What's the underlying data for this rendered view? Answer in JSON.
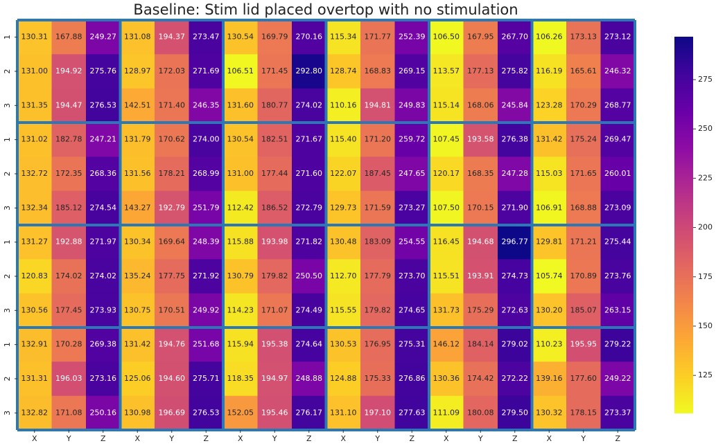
{
  "chart_data": {
    "type": "heatmap",
    "title": "Baseline: Stim lid placed overtop with no stimulation",
    "categories": [
      "X",
      "Y",
      "Z",
      "X",
      "Y",
      "Z",
      "X",
      "Y",
      "Z",
      "X",
      "Y",
      "Z",
      "X",
      "Y",
      "Z",
      "X",
      "Y",
      "Z"
    ],
    "y_categories": [
      "1",
      "2",
      "3",
      "1",
      "2",
      "3",
      "1",
      "2",
      "3",
      "1",
      "2",
      "3"
    ],
    "values": [
      [
        130.31,
        167.88,
        249.27,
        131.08,
        194.37,
        273.47,
        130.54,
        169.79,
        270.16,
        115.34,
        171.77,
        252.39,
        106.5,
        167.95,
        267.7,
        106.26,
        173.13,
        273.12
      ],
      [
        131.0,
        194.92,
        275.76,
        128.97,
        172.03,
        271.69,
        106.51,
        171.45,
        292.8,
        128.74,
        168.83,
        269.15,
        113.57,
        177.13,
        275.82,
        116.19,
        165.61,
        246.32
      ],
      [
        131.35,
        194.47,
        276.53,
        142.51,
        171.4,
        246.35,
        131.6,
        180.77,
        274.02,
        110.16,
        194.81,
        249.83,
        115.14,
        168.06,
        245.84,
        123.28,
        170.29,
        268.77
      ],
      [
        131.02,
        182.78,
        247.21,
        131.79,
        170.62,
        274.0,
        130.54,
        182.51,
        271.67,
        115.4,
        171.2,
        259.72,
        107.45,
        193.58,
        276.38,
        131.42,
        175.24,
        269.47
      ],
      [
        132.72,
        172.35,
        268.36,
        131.56,
        178.21,
        268.99,
        131.0,
        177.44,
        271.6,
        122.07,
        187.45,
        247.65,
        120.17,
        168.35,
        247.28,
        115.03,
        171.65,
        260.01
      ],
      [
        132.34,
        185.12,
        274.54,
        143.27,
        192.79,
        251.79,
        112.42,
        186.52,
        272.79,
        129.73,
        171.59,
        273.27,
        107.5,
        170.15,
        271.9,
        106.91,
        168.88,
        273.09
      ],
      [
        131.27,
        192.88,
        271.97,
        130.34,
        169.64,
        248.39,
        115.88,
        193.98,
        271.82,
        130.48,
        183.09,
        254.55,
        116.45,
        194.68,
        296.77,
        129.81,
        171.21,
        275.44
      ],
      [
        120.83,
        174.02,
        274.02,
        135.24,
        177.75,
        271.92,
        130.79,
        179.82,
        250.5,
        112.7,
        177.79,
        273.7,
        115.51,
        193.91,
        274.73,
        105.74,
        170.89,
        273.76
      ],
      [
        130.56,
        177.45,
        273.93,
        130.75,
        170.51,
        249.92,
        114.23,
        171.07,
        274.49,
        115.55,
        179.82,
        274.65,
        131.73,
        175.29,
        272.63,
        130.2,
        185.07,
        263.15
      ],
      [
        132.91,
        170.28,
        269.38,
        131.42,
        194.76,
        251.68,
        115.94,
        195.38,
        274.64,
        130.53,
        176.95,
        275.31,
        146.12,
        184.14,
        279.02,
        110.23,
        195.95,
        279.22
      ],
      [
        131.31,
        196.03,
        273.16,
        125.06,
        194.6,
        275.71,
        118.35,
        194.97,
        248.88,
        124.88,
        175.33,
        276.86,
        130.36,
        174.42,
        272.22,
        139.16,
        177.6,
        249.22
      ],
      [
        132.82,
        171.08,
        250.16,
        130.98,
        196.69,
        276.53,
        152.05,
        195.46,
        276.17,
        131.1,
        197.1,
        277.63,
        111.09,
        180.08,
        279.5,
        130.32,
        178.15,
        273.37
      ]
    ],
    "value_labels": [
      [
        "130.31",
        "167.88",
        "249.27",
        "131.08",
        "194.37",
        "273.47",
        "130.54",
        "169.79",
        "270.16",
        "115.34",
        "171.77",
        "252.39",
        "106.50",
        "167.95",
        "267.70",
        "106.26",
        "173.13",
        "273.12"
      ],
      [
        "131.00",
        "194.92",
        "275.76",
        "128.97",
        "172.03",
        "271.69",
        "106.51",
        "171.45",
        "292.80",
        "128.74",
        "168.83",
        "269.15",
        "113.57",
        "177.13",
        "275.82",
        "116.19",
        "165.61",
        "246.32"
      ],
      [
        "131.35",
        "194.47",
        "276.53",
        "142.51",
        "171.40",
        "246.35",
        "131.60",
        "180.77",
        "274.02",
        "110.16",
        "194.81",
        "249.83",
        "115.14",
        "168.06",
        "245.84",
        "123.28",
        "170.29",
        "268.77"
      ],
      [
        "131.02",
        "182.78",
        "247.21",
        "131.79",
        "170.62",
        "274.00",
        "130.54",
        "182.51",
        "271.67",
        "115.40",
        "171.20",
        "259.72",
        "107.45",
        "193.58",
        "276.38",
        "131.42",
        "175.24",
        "269.47"
      ],
      [
        "132.72",
        "172.35",
        "268.36",
        "131.56",
        "178.21",
        "268.99",
        "131.00",
        "177.44",
        "271.60",
        "122.07",
        "187.45",
        "247.65",
        "120.17",
        "168.35",
        "247.28",
        "115.03",
        "171.65",
        "260.01"
      ],
      [
        "132.34",
        "185.12",
        "274.54",
        "143.27",
        "192.79",
        "251.79",
        "112.42",
        "186.52",
        "272.79",
        "129.73",
        "171.59",
        "273.27",
        "107.50",
        "170.15",
        "271.90",
        "106.91",
        "168.88",
        "273.09"
      ],
      [
        "131.27",
        "192.88",
        "271.97",
        "130.34",
        "169.64",
        "248.39",
        "115.88",
        "193.98",
        "271.82",
        "130.48",
        "183.09",
        "254.55",
        "116.45",
        "194.68",
        "296.77",
        "129.81",
        "171.21",
        "275.44"
      ],
      [
        "120.83",
        "174.02",
        "274.02",
        "135.24",
        "177.75",
        "271.92",
        "130.79",
        "179.82",
        "250.50",
        "112.70",
        "177.79",
        "273.70",
        "115.51",
        "193.91",
        "274.73",
        "105.74",
        "170.89",
        "273.76"
      ],
      [
        "130.56",
        "177.45",
        "273.93",
        "130.75",
        "170.51",
        "249.92",
        "114.23",
        "171.07",
        "274.49",
        "115.55",
        "179.82",
        "274.65",
        "131.73",
        "175.29",
        "272.63",
        "130.20",
        "185.07",
        "263.15"
      ],
      [
        "132.91",
        "170.28",
        "269.38",
        "131.42",
        "194.76",
        "251.68",
        "115.94",
        "195.38",
        "274.64",
        "130.53",
        "176.95",
        "275.31",
        "146.12",
        "184.14",
        "279.02",
        "110.23",
        "195.95",
        "279.22"
      ],
      [
        "131.31",
        "196.03",
        "273.16",
        "125.06",
        "194.60",
        "275.71",
        "118.35",
        "194.97",
        "248.88",
        "124.88",
        "175.33",
        "276.86",
        "130.36",
        "174.42",
        "272.22",
        "139.16",
        "177.60",
        "249.22"
      ],
      [
        "132.82",
        "171.08",
        "250.16",
        "130.98",
        "196.69",
        "276.53",
        "152.05",
        "195.46",
        "276.17",
        "131.10",
        "197.10",
        "277.63",
        "111.09",
        "180.08",
        "279.50",
        "130.32",
        "178.15",
        "273.37"
      ]
    ],
    "colormap": "plasma_r",
    "clim": [
      105.74,
      296.77
    ],
    "cbar_ticks": [
      125,
      150,
      175,
      200,
      225,
      250,
      275
    ]
  }
}
